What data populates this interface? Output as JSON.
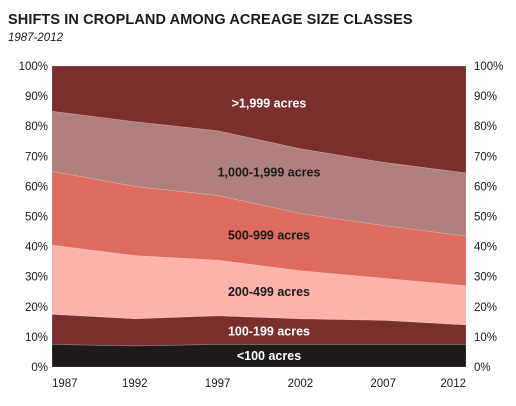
{
  "chart_data": {
    "type": "area",
    "stacked": true,
    "normalized": true,
    "title": "SHIFTS IN CROPLAND AMONG ACREAGE SIZE CLASSES",
    "subtitle": "1987-2012",
    "x": [
      1987,
      1992,
      1997,
      2002,
      2007,
      2012
    ],
    "xlabel": "",
    "ylabel": "",
    "ylim": [
      0,
      100
    ],
    "yticks": [
      "0%",
      "10%",
      "20%",
      "30%",
      "40%",
      "50%",
      "60%",
      "70%",
      "80%",
      "90%",
      "100%"
    ],
    "grid": false,
    "legend": "labels-inside-bands",
    "series": [
      {
        "name": "<100 acres",
        "values": [
          7.5,
          7.0,
          7.5,
          7.5,
          7.5,
          7.5
        ],
        "color": "#1f1a1a",
        "label_color": "#ffffff"
      },
      {
        "name": "100-199 acres",
        "values": [
          10.0,
          9.0,
          9.5,
          8.5,
          8.0,
          6.5
        ],
        "color": "#7a2f2c",
        "label_color": "#ffffff"
      },
      {
        "name": "200-499 acres",
        "values": [
          23.0,
          21.0,
          18.5,
          16.0,
          14.0,
          13.0
        ],
        "color": "#fbb3ab",
        "label_color": "#1a1a1a"
      },
      {
        "name": "500-999 acres",
        "values": [
          24.5,
          23.0,
          21.5,
          19.0,
          17.5,
          16.5
        ],
        "color": "#dd6b5e",
        "label_color": "#1a1a1a"
      },
      {
        "name": "1,000-1,999 acres",
        "values": [
          20.0,
          21.5,
          21.5,
          21.5,
          21.0,
          21.0
        ],
        "color": "#b17f7b",
        "label_color": "#1a1a1a"
      },
      {
        "name": ">1,999 acres",
        "values": [
          15.0,
          18.5,
          21.5,
          27.5,
          32.0,
          35.5
        ],
        "color": "#7a2f2c",
        "label_color": "#ffffff"
      }
    ]
  }
}
